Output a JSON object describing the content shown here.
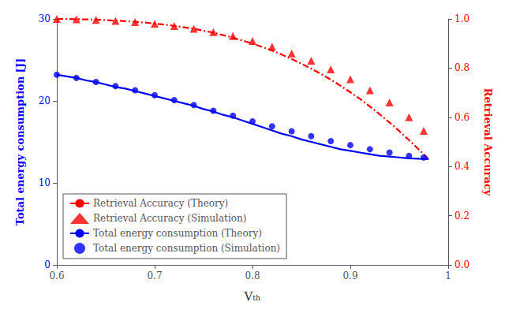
{
  "chart_data": {
    "type": "line",
    "xlabel": "Vₜₕ",
    "ylabel": "Total energy consumption [J]",
    "y2label": "Retrieval Accuracy",
    "xlim": [
      0.6,
      1.0
    ],
    "xticks": [
      0.6,
      0.7,
      0.8,
      0.9,
      1
    ],
    "ylim": [
      0,
      30
    ],
    "yticks": [
      0,
      10,
      20,
      30
    ],
    "y2lim": [
      0,
      1
    ],
    "y2ticks": [
      {
        "value": 0,
        "label": "0.0"
      },
      0.2,
      0.4,
      0.6,
      0.8,
      {
        "value": 1,
        "label": "1.0"
      }
    ],
    "grid": false,
    "legend": "lower left",
    "series": [
      {
        "name": "Retrieval Accuracy (Theory)",
        "type": "line",
        "line_style": "dashdot",
        "color": "#ff0000",
        "axis": "y2",
        "x": [
          0.6,
          0.61,
          0.62,
          0.63,
          0.64,
          0.65,
          0.66,
          0.67,
          0.68,
          0.69,
          0.7,
          0.71,
          0.72,
          0.73,
          0.74,
          0.75,
          0.76,
          0.77,
          0.78,
          0.79,
          0.8,
          0.81,
          0.82,
          0.83,
          0.84,
          0.85,
          0.86,
          0.87,
          0.88,
          0.89,
          0.9,
          0.91,
          0.92,
          0.93,
          0.94,
          0.95,
          0.96,
          0.97,
          0.975,
          0.98
        ],
        "values": [
          1.0,
          1.0,
          0.999,
          0.998,
          0.997,
          0.995,
          0.993,
          0.991,
          0.988,
          0.985,
          0.981,
          0.977,
          0.972,
          0.966,
          0.96,
          0.952,
          0.944,
          0.934,
          0.924,
          0.912,
          0.899,
          0.886,
          0.871,
          0.855,
          0.837,
          0.818,
          0.798,
          0.776,
          0.753,
          0.728,
          0.702,
          0.674,
          0.644,
          0.612,
          0.579,
          0.544,
          0.507,
          0.469,
          0.45,
          0.43
        ]
      },
      {
        "name": "Retrieval Accuracy (Simulation)",
        "type": "scatter",
        "marker": "triangle",
        "color": "#ff0000",
        "axis": "y2",
        "x": [
          0.6,
          0.62,
          0.64,
          0.66,
          0.68,
          0.7,
          0.72,
          0.74,
          0.76,
          0.78,
          0.8,
          0.82,
          0.84,
          0.86,
          0.88,
          0.9,
          0.92,
          0.94,
          0.96,
          0.975
        ],
        "values": [
          1.0,
          0.998,
          0.996,
          0.992,
          0.987,
          0.98,
          0.971,
          0.96,
          0.946,
          0.93,
          0.91,
          0.887,
          0.86,
          0.83,
          0.795,
          0.755,
          0.71,
          0.66,
          0.6,
          0.545
        ]
      },
      {
        "name": "Total energy consumption (Theory)",
        "type": "line",
        "line_style": "solid",
        "color": "#0000ff",
        "x": [
          0.6,
          0.61,
          0.62,
          0.63,
          0.64,
          0.65,
          0.66,
          0.67,
          0.68,
          0.69,
          0.7,
          0.71,
          0.72,
          0.73,
          0.74,
          0.75,
          0.76,
          0.77,
          0.78,
          0.79,
          0.8,
          0.81,
          0.82,
          0.83,
          0.84,
          0.85,
          0.86,
          0.87,
          0.88,
          0.89,
          0.9,
          0.91,
          0.92,
          0.93,
          0.94,
          0.95,
          0.96,
          0.97,
          0.975,
          0.98
        ],
        "values": [
          23.2,
          23.0,
          22.8,
          22.5,
          22.3,
          22.0,
          21.7,
          21.5,
          21.2,
          20.9,
          20.6,
          20.3,
          20.0,
          19.7,
          19.4,
          19.0,
          18.7,
          18.3,
          18.0,
          17.6,
          17.2,
          16.8,
          16.4,
          16.0,
          15.7,
          15.3,
          15.0,
          14.7,
          14.4,
          14.1,
          13.9,
          13.7,
          13.5,
          13.3,
          13.2,
          13.1,
          13.0,
          12.95,
          12.93,
          12.9
        ]
      },
      {
        "name": "Total energy consumption (Simulation)",
        "type": "scatter",
        "marker": "circle",
        "color": "#0000ff",
        "x": [
          0.6,
          0.62,
          0.64,
          0.66,
          0.68,
          0.7,
          0.72,
          0.74,
          0.76,
          0.78,
          0.8,
          0.82,
          0.84,
          0.86,
          0.88,
          0.9,
          0.92,
          0.94,
          0.96,
          0.975
        ],
        "values": [
          23.2,
          22.8,
          22.3,
          21.8,
          21.3,
          20.7,
          20.1,
          19.5,
          18.8,
          18.2,
          17.5,
          16.9,
          16.3,
          15.7,
          15.1,
          14.6,
          14.1,
          13.7,
          13.3,
          13.1
        ]
      }
    ]
  }
}
